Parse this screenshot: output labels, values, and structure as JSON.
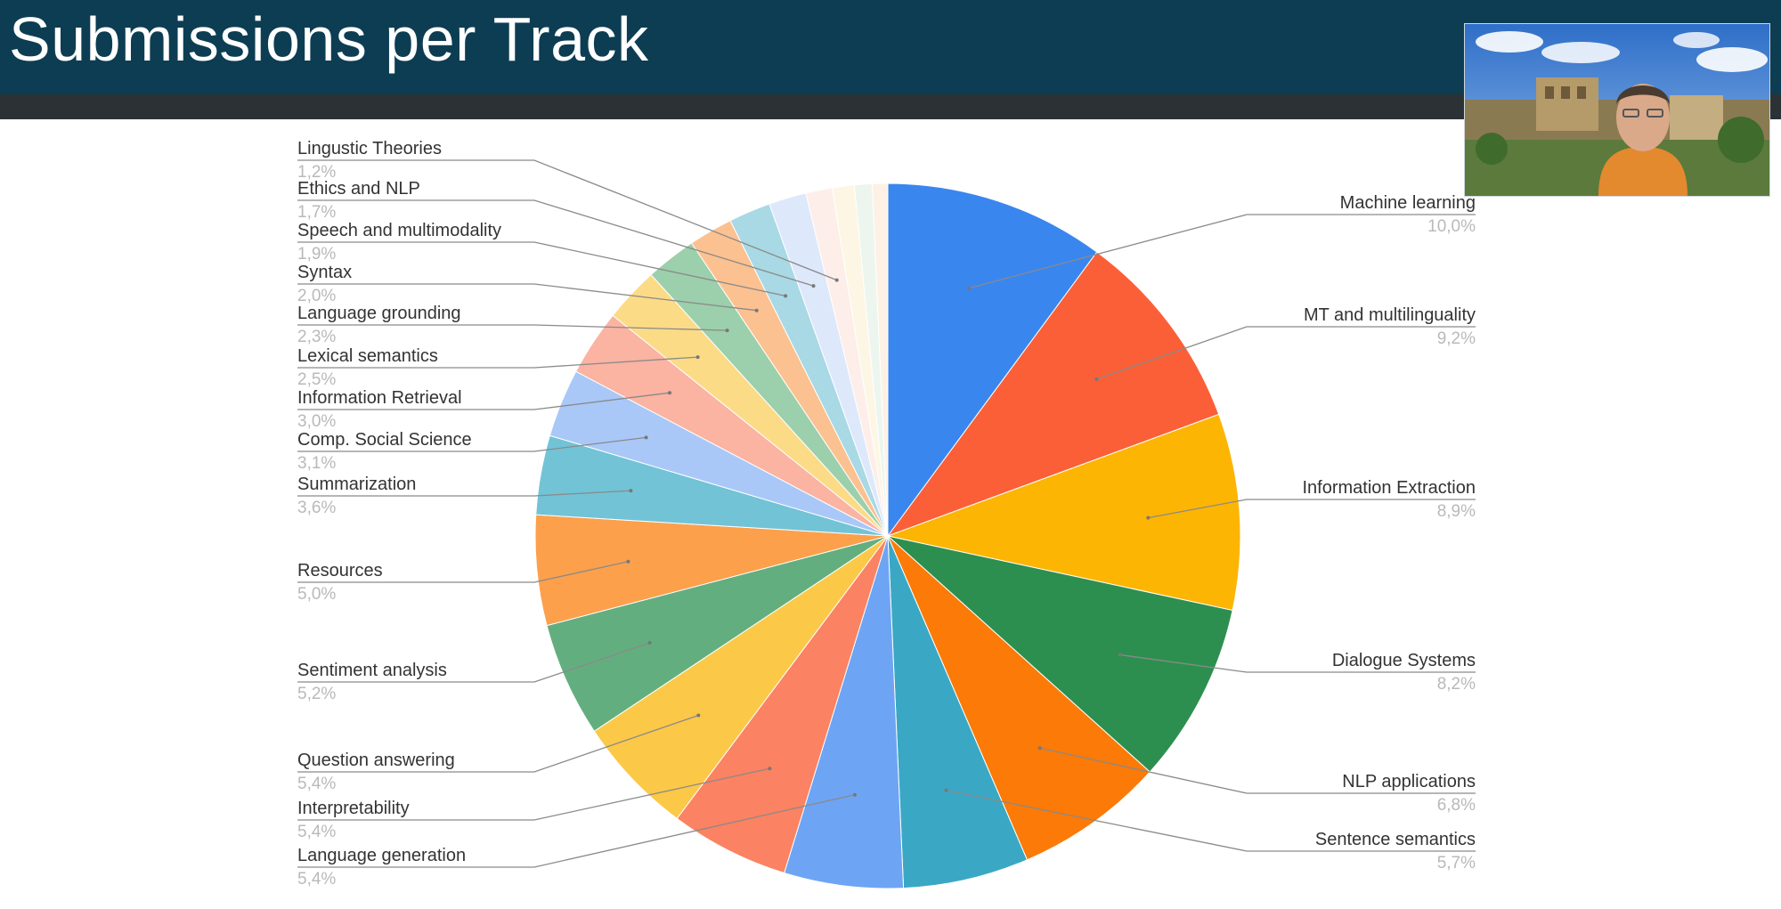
{
  "slide": {
    "title": "Submissions per Track"
  },
  "chart_data": {
    "type": "pie",
    "title": "",
    "start": "top",
    "direction": "clockwise",
    "slices": [
      {
        "label": "Machine learning",
        "value": 10.0,
        "display": "10,0%",
        "color": "#3a86ef"
      },
      {
        "label": "MT and multilinguality",
        "value": 9.2,
        "display": "9,2%",
        "color": "#fb5f38"
      },
      {
        "label": "Information Extraction",
        "value": 8.9,
        "display": "8,9%",
        "color": "#fcb502"
      },
      {
        "label": "Dialogue Systems",
        "value": 8.2,
        "display": "8,2%",
        "color": "#2d8f4f"
      },
      {
        "label": "NLP applications",
        "value": 6.8,
        "display": "6,8%",
        "color": "#fb7a08"
      },
      {
        "label": "Sentence semantics",
        "value": 5.7,
        "display": "5,7%",
        "color": "#3aa8c4"
      },
      {
        "label": "Language generation",
        "value": 5.4,
        "display": "5,4%",
        "color": "#6ea4f4"
      },
      {
        "label": "Interpretability",
        "value": 5.4,
        "display": "5,4%",
        "color": "#fb8262"
      },
      {
        "label": "Question answering",
        "value": 5.4,
        "display": "5,4%",
        "color": "#fcc847"
      },
      {
        "label": "Sentiment analysis",
        "value": 5.2,
        "display": "5,2%",
        "color": "#63ae7f"
      },
      {
        "label": "Resources",
        "value": 5.0,
        "display": "5,0%",
        "color": "#fca04c"
      },
      {
        "label": "Summarization",
        "value": 3.6,
        "display": "3,6%",
        "color": "#72c3d6"
      },
      {
        "label": "Comp. Social Science",
        "value": 3.1,
        "display": "3,1%",
        "color": "#a9c8f8"
      },
      {
        "label": "Information Retrieval",
        "value": 3.0,
        "display": "3,0%",
        "color": "#fbb3a2"
      },
      {
        "label": "Lexical semantics",
        "value": 2.5,
        "display": "2,5%",
        "color": "#fcdb87"
      },
      {
        "label": "Language grounding",
        "value": 2.3,
        "display": "2,3%",
        "color": "#9ccfab"
      },
      {
        "label": "Syntax",
        "value": 2.0,
        "display": "2,0%",
        "color": "#fcc191"
      },
      {
        "label": "Speech and multimodality",
        "value": 1.9,
        "display": "1,9%",
        "color": "#a8d9e5"
      },
      {
        "label": "Ethics and NLP",
        "value": 1.7,
        "display": "1,7%",
        "color": "#dde8fb"
      },
      {
        "label": "Lingustic Theories",
        "value": 1.2,
        "display": "1,2%",
        "color": "#fdeee9"
      },
      {
        "label": "",
        "value": 1.0,
        "display": "",
        "color": "#fdf6e4"
      },
      {
        "label": "",
        "value": 0.8,
        "display": "",
        "color": "#ecf6ee"
      },
      {
        "label": "",
        "value": 0.7,
        "display": "",
        "color": "#fdf1e6"
      }
    ]
  },
  "webcam": {
    "icon": "presenter-video-feed"
  }
}
